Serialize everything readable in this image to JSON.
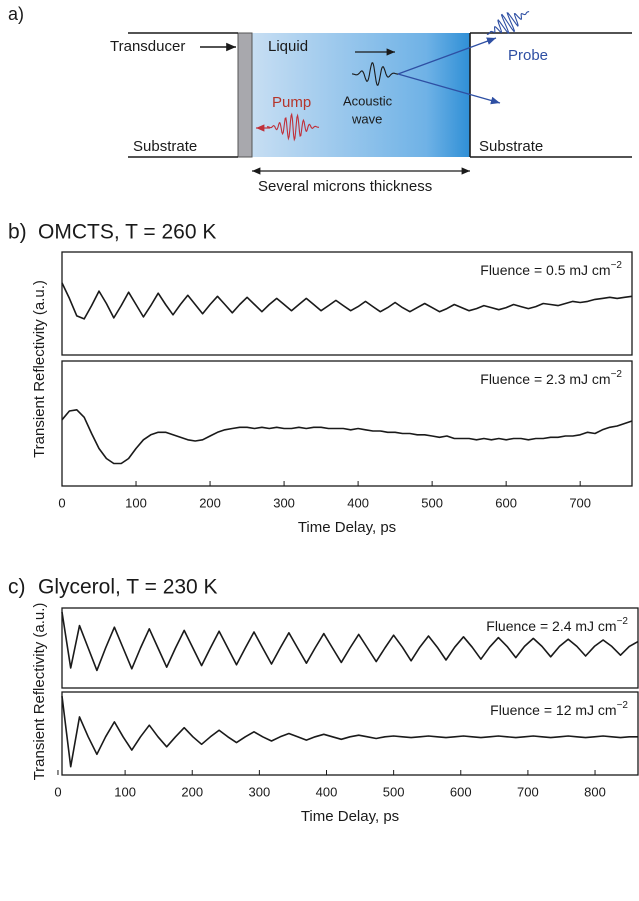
{
  "diagram": {
    "label": "a)",
    "transducer": "Transducer",
    "liquid": "Liquid",
    "pump": "Pump",
    "acoustic_wave": [
      "Acoustic",
      "wave"
    ],
    "probe": "Probe",
    "substrate_left": "Substrate",
    "substrate_right": "Substrate",
    "thickness": "Several microns thickness"
  },
  "chart_data": [
    {
      "type": "line",
      "panel_label": "b)",
      "title": "OMCTS, T = 260 K",
      "ylabel": "Transient Reflectivity (a.u.)",
      "annotation": "Fluence = 0.5 mJ cm",
      "annotation_sup": "−2",
      "color": "#1a1a1a",
      "xlim": [
        0,
        770
      ],
      "ylim": [
        0,
        100
      ],
      "x": [
        0,
        10,
        20,
        30,
        40,
        50,
        60,
        70,
        80,
        90,
        100,
        110,
        120,
        130,
        140,
        150,
        160,
        170,
        180,
        190,
        200,
        210,
        220,
        230,
        240,
        250,
        260,
        270,
        280,
        290,
        300,
        310,
        320,
        330,
        340,
        350,
        360,
        370,
        380,
        390,
        400,
        410,
        420,
        430,
        440,
        450,
        460,
        470,
        480,
        490,
        500,
        510,
        520,
        530,
        540,
        550,
        560,
        570,
        580,
        590,
        600,
        610,
        620,
        630,
        640,
        650,
        660,
        670,
        680,
        690,
        700,
        710,
        720,
        730,
        740,
        750,
        760,
        770
      ],
      "values": [
        70,
        55,
        38,
        35,
        48,
        62,
        50,
        36,
        48,
        61,
        49,
        37,
        48,
        60,
        49,
        39,
        49,
        58,
        49,
        40,
        49,
        57,
        49,
        41,
        49,
        56,
        49,
        42,
        49,
        55,
        49,
        43,
        49,
        55,
        49,
        43,
        48,
        53,
        48,
        43,
        47,
        52,
        47,
        42,
        46,
        51,
        46,
        42,
        46,
        50,
        46,
        42,
        45,
        49,
        46,
        43,
        45,
        48,
        46,
        44,
        46,
        49,
        47,
        45,
        47,
        50,
        49,
        48,
        50,
        52,
        51,
        52,
        54,
        55,
        56,
        55,
        56,
        57
      ]
    },
    {
      "type": "line",
      "annotation": "Fluence = 2.3 mJ cm",
      "annotation_sup": "−2",
      "xlabel": "Time Delay, ps",
      "color": "#1a1a1a",
      "xlim": [
        0,
        770
      ],
      "ylim": [
        0,
        100
      ],
      "xticks": [
        0,
        100,
        200,
        300,
        400,
        500,
        600,
        700
      ],
      "x": [
        0,
        10,
        20,
        30,
        40,
        50,
        60,
        70,
        80,
        90,
        100,
        110,
        120,
        130,
        140,
        150,
        160,
        170,
        180,
        190,
        200,
        210,
        220,
        230,
        240,
        250,
        260,
        270,
        280,
        290,
        300,
        310,
        320,
        330,
        340,
        350,
        360,
        370,
        380,
        390,
        400,
        410,
        420,
        430,
        440,
        450,
        460,
        470,
        480,
        490,
        500,
        510,
        520,
        530,
        540,
        550,
        560,
        570,
        580,
        590,
        600,
        610,
        620,
        630,
        640,
        650,
        660,
        670,
        680,
        690,
        700,
        710,
        720,
        730,
        740,
        750,
        760,
        770
      ],
      "values": [
        53,
        60,
        61,
        55,
        42,
        30,
        22,
        18,
        18,
        22,
        30,
        37,
        41,
        43,
        43,
        41,
        39,
        37,
        36,
        37,
        40,
        43,
        45,
        46,
        47,
        47,
        46,
        47,
        46,
        47,
        46,
        46,
        47,
        46,
        47,
        47,
        46,
        46,
        46,
        45,
        46,
        45,
        44,
        44,
        43,
        43,
        42,
        42,
        41,
        41,
        40,
        39,
        40,
        38,
        38,
        38,
        37,
        38,
        37,
        38,
        37,
        38,
        38,
        37,
        38,
        38,
        39,
        39,
        40,
        40,
        41,
        43,
        42,
        45,
        47,
        48,
        50,
        52
      ]
    },
    {
      "type": "line",
      "panel_label": "c)",
      "title": "Glycerol, T = 230 K",
      "ylabel": "Transient Reflectivity (a.u.)",
      "annotation": "Fluence = 2.4 mJ cm",
      "annotation_sup": "−2",
      "color": "#1a1a1a",
      "xlim": [
        6,
        864
      ],
      "ylim": [
        0,
        100
      ],
      "x": [
        6,
        19,
        32,
        45,
        58,
        71,
        84,
        97,
        110,
        123,
        136,
        149,
        162,
        175,
        188,
        201,
        214,
        227,
        240,
        253,
        266,
        279,
        292,
        305,
        318,
        331,
        344,
        357,
        370,
        383,
        396,
        409,
        422,
        435,
        448,
        461,
        474,
        487,
        500,
        513,
        526,
        539,
        552,
        565,
        578,
        591,
        604,
        617,
        630,
        643,
        656,
        669,
        682,
        695,
        708,
        721,
        734,
        747,
        760,
        773,
        786,
        799,
        812,
        825,
        838,
        851,
        864
      ],
      "values": [
        95,
        25,
        78,
        50,
        22,
        50,
        76,
        50,
        24,
        50,
        74,
        50,
        26,
        50,
        72,
        50,
        28,
        50,
        71,
        50,
        29,
        50,
        70,
        50,
        30,
        50,
        69,
        50,
        31,
        50,
        68,
        50,
        32,
        50,
        67,
        50,
        33,
        50,
        66,
        51,
        34,
        51,
        65,
        51,
        35,
        51,
        64,
        51,
        36,
        51,
        63,
        52,
        38,
        52,
        62,
        52,
        39,
        52,
        61,
        52,
        40,
        52,
        60,
        52,
        41,
        52,
        58
      ]
    },
    {
      "type": "line",
      "annotation": "Fluence = 12 mJ cm",
      "annotation_sup": "−2",
      "xlabel": "Time Delay, ps",
      "color": "#1a1a1a",
      "xlim": [
        6,
        864
      ],
      "ylim": [
        0,
        100
      ],
      "xticks": [
        0,
        100,
        200,
        300,
        400,
        500,
        600,
        700,
        800
      ],
      "x": [
        6,
        19,
        32,
        45,
        58,
        71,
        84,
        97,
        110,
        123,
        136,
        149,
        162,
        175,
        188,
        201,
        214,
        227,
        240,
        253,
        266,
        279,
        292,
        305,
        318,
        331,
        344,
        357,
        370,
        383,
        396,
        409,
        422,
        435,
        448,
        461,
        474,
        487,
        500,
        513,
        526,
        539,
        552,
        565,
        578,
        591,
        604,
        617,
        630,
        643,
        656,
        669,
        682,
        695,
        708,
        721,
        734,
        747,
        760,
        773,
        786,
        799,
        812,
        825,
        838,
        851,
        864
      ],
      "values": [
        95,
        10,
        70,
        46,
        25,
        46,
        64,
        46,
        30,
        46,
        60,
        46,
        34,
        46,
        57,
        46,
        37,
        46,
        54,
        46,
        39,
        46,
        52,
        46,
        41,
        46,
        50,
        46,
        42,
        46,
        49,
        46,
        43,
        46,
        48,
        46,
        44,
        46,
        47,
        46,
        45,
        46,
        47,
        46,
        45,
        46,
        47,
        46,
        45,
        46,
        47,
        46,
        45,
        46,
        47,
        46,
        45,
        46,
        47,
        46,
        45,
        46,
        47,
        46,
        45,
        46,
        46
      ]
    }
  ]
}
